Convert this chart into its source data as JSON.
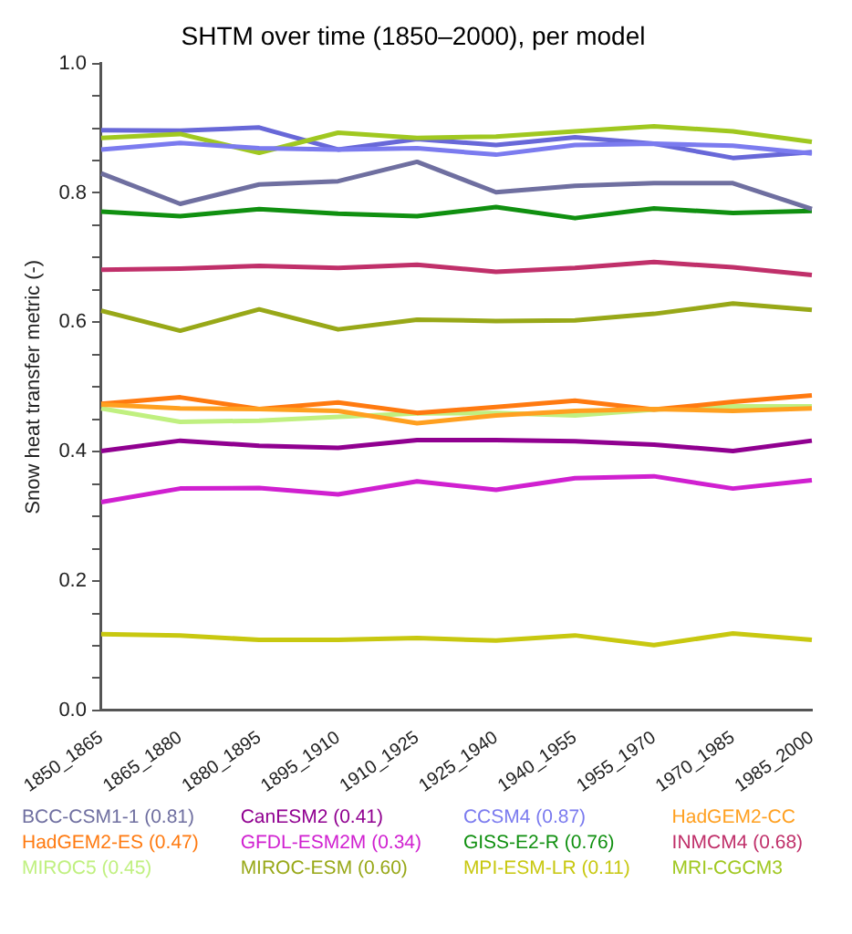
{
  "chart_data": {
    "type": "line",
    "title": "SHTM over time (1850–2000), per model",
    "ylabel": "Snow heat transfer metric (-)",
    "categories": [
      "1850_1865",
      "1865_1880",
      "1880_1895",
      "1895_1910",
      "1910_1925",
      "1925_1940",
      "1940_1955",
      "1955_1970",
      "1970_1985",
      "1985_2000"
    ],
    "ylim": [
      0,
      1
    ],
    "yticks": [
      {
        "value": 0,
        "label": "0.0"
      },
      {
        "value": 0.05,
        "label": null
      },
      {
        "value": 0.1,
        "label": null
      },
      {
        "value": 0.15,
        "label": null
      },
      {
        "value": 0.2,
        "label": "0.2"
      },
      {
        "value": 0.25,
        "label": null
      },
      {
        "value": 0.3,
        "label": null
      },
      {
        "value": 0.35,
        "label": null
      },
      {
        "value": 0.4,
        "label": "0.4"
      },
      {
        "value": 0.45,
        "label": null
      },
      {
        "value": 0.5,
        "label": null
      },
      {
        "value": 0.55,
        "label": null
      },
      {
        "value": 0.6,
        "label": "0.6"
      },
      {
        "value": 0.65,
        "label": null
      },
      {
        "value": 0.7,
        "label": null
      },
      {
        "value": 0.75,
        "label": null
      },
      {
        "value": 0.8,
        "label": "0.8"
      },
      {
        "value": 0.85,
        "label": null
      },
      {
        "value": 0.9,
        "label": null
      },
      {
        "value": 0.95,
        "label": null
      },
      {
        "value": 1,
        "label": "1.0"
      }
    ],
    "grid": false,
    "legend": "bottom",
    "marker": "none",
    "line_style": "solid",
    "series": [
      {
        "name": "BCC-CSM1-1 (0.81)",
        "color": "#6f6fa0",
        "values": [
          0.83,
          0.783,
          0.813,
          0.818,
          0.848,
          0.801,
          0.811,
          0.815,
          0.815,
          0.775
        ]
      },
      {
        "name": "CanESM2 (0.41)",
        "color": "#900090",
        "values": [
          0.401,
          0.417,
          0.409,
          0.406,
          0.418,
          0.418,
          0.416,
          0.411,
          0.401,
          0.417
        ]
      },
      {
        "name": "CCSM4 (0.87)",
        "color": "#7b7bef",
        "values": [
          0.867,
          0.877,
          0.869,
          0.867,
          0.869,
          0.859,
          0.874,
          0.876,
          0.873,
          0.861
        ]
      },
      {
        "name": "HadGEM2-CC",
        "color": "#ffa020",
        "values": [
          0.473,
          0.467,
          0.466,
          0.463,
          0.444,
          0.456,
          0.463,
          0.466,
          0.463,
          0.467
        ]
      },
      {
        "name": "HadGEM2-ES (0.47)",
        "color": "#ff7a10",
        "values": [
          0.474,
          0.484,
          0.466,
          0.476,
          0.46,
          0.469,
          0.479,
          0.465,
          0.477,
          0.487
        ]
      },
      {
        "name": "GFDL-ESM2M (0.34)",
        "color": "#d020d0",
        "values": [
          0.322,
          0.343,
          0.344,
          0.334,
          0.354,
          0.341,
          0.359,
          0.362,
          0.343,
          0.356
        ]
      },
      {
        "name": "GISS-E2-R (0.76)",
        "color": "#109010",
        "values": [
          0.771,
          0.764,
          0.775,
          0.768,
          0.764,
          0.778,
          0.761,
          0.776,
          0.769,
          0.772
        ]
      },
      {
        "name": "INMCM4 (0.68)",
        "color": "#c0306a",
        "values": [
          0.681,
          0.683,
          0.687,
          0.684,
          0.689,
          0.678,
          0.684,
          0.693,
          0.685,
          0.673
        ]
      },
      {
        "name": "MIROC5 (0.45)",
        "color": "#c0f080",
        "values": [
          0.467,
          0.446,
          0.448,
          0.454,
          0.459,
          0.46,
          0.456,
          0.465,
          0.47,
          0.47
        ]
      },
      {
        "name": "MIROC-ESM (0.60)",
        "color": "#98a818",
        "values": [
          0.618,
          0.587,
          0.62,
          0.589,
          0.604,
          0.602,
          0.603,
          0.613,
          0.629,
          0.619
        ]
      },
      {
        "name": "MPI-ESM-LR (0.11)",
        "color": "#c8c810",
        "values": [
          0.118,
          0.116,
          0.109,
          0.109,
          0.112,
          0.108,
          0.116,
          0.101,
          0.119,
          0.109
        ]
      },
      {
        "name": "MRI-CGCM3",
        "color": "#a0c820",
        "values": [
          0.885,
          0.891,
          0.862,
          0.893,
          0.885,
          0.887,
          0.895,
          0.903,
          0.895,
          0.879
        ]
      },
      {
        "color": "#6868d8",
        "values": [
          0.897,
          0.896,
          0.901,
          0.867,
          0.883,
          0.874,
          0.886,
          0.876,
          0.854,
          0.863
        ]
      }
    ]
  }
}
